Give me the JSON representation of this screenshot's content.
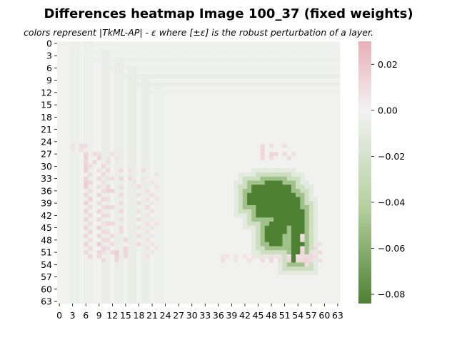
{
  "chart_data": {
    "type": "heatmap",
    "title": "Differences heatmap Image 100_37 (fixed weights)",
    "subtitle": "colors represent |TkML-AP| - ε where [±ε] is the robust perturbation of a layer.",
    "xlabel": "",
    "ylabel": "",
    "rows": 64,
    "cols": 64,
    "x_tick_labels": [
      "0",
      "3",
      "6",
      "9",
      "12",
      "15",
      "18",
      "21",
      "24",
      "27",
      "30",
      "33",
      "36",
      "39",
      "42",
      "45",
      "48",
      "51",
      "54",
      "57",
      "60",
      "63"
    ],
    "y_tick_labels": [
      "0",
      "3",
      "6",
      "9",
      "12",
      "15",
      "18",
      "21",
      "24",
      "27",
      "30",
      "33",
      "36",
      "39",
      "42",
      "45",
      "48",
      "51",
      "54",
      "57",
      "60",
      "63"
    ],
    "colorbar": {
      "vmin": -0.084,
      "vmax": 0.03,
      "center": 0.0,
      "ticks": [
        0.02,
        0.0,
        -0.02,
        -0.04,
        -0.06,
        -0.08
      ],
      "tick_labels": [
        "0.02",
        "0.00",
        "−0.02",
        "−0.04",
        "−0.06",
        "−0.08"
      ],
      "colors": {
        "negative": "#4e8132",
        "center": "#f2f2f2",
        "positive": "#e8b0b8"
      }
    },
    "background_value": -0.001,
    "value_bands": [
      {
        "region": "rows 0-63, cols 3-4",
        "value": -0.004
      },
      {
        "region": "rows 0-63, cols 6-7",
        "value": -0.004
      },
      {
        "region": "rows 2-63, cols 10-11",
        "value": -0.005
      },
      {
        "region": "rows 4-63, cols 13-14",
        "value": -0.005
      },
      {
        "region": "rows 6-63, cols 16-17",
        "value": -0.006
      },
      {
        "region": "rows 8-63, cols 19-20",
        "value": -0.005
      },
      {
        "region": "rows 10-63, cols 22-23",
        "value": -0.004
      },
      {
        "region": "row 2, cols 3-63",
        "value": -0.003
      },
      {
        "region": "row 4, cols 6-63",
        "value": -0.004
      },
      {
        "region": "row 6, cols 10-63",
        "value": -0.004
      },
      {
        "region": "row 8, cols 13-63",
        "value": -0.005
      },
      {
        "region": "row 10, cols 16-63",
        "value": -0.006
      },
      {
        "region": "row 12, cols 19-63",
        "value": -0.004
      }
    ],
    "digit_region_value": -0.084,
    "halo_values": [
      -0.05,
      -0.025,
      -0.01
    ],
    "digit_polylines": [
      [
        [
          38,
          44
        ],
        [
          38,
          52
        ],
        [
          40,
          53
        ],
        [
          44,
          54
        ],
        [
          48,
          54
        ],
        [
          52,
          54
        ]
      ],
      [
        [
          36,
          45
        ],
        [
          36,
          48
        ],
        [
          35,
          48
        ],
        [
          36,
          51
        ]
      ],
      [
        [
          37,
          50
        ],
        [
          42,
          51
        ],
        [
          44,
          50
        ],
        [
          46,
          48
        ],
        [
          48,
          49
        ]
      ]
    ],
    "digit_columns": [
      {
        "col": 46,
        "row_start": 36,
        "row_end": 41
      },
      {
        "col": 47,
        "row_start": 36,
        "row_end": 41
      },
      {
        "col": 48,
        "row_start": 37,
        "row_end": 41
      },
      {
        "col": 49,
        "row_start": 38,
        "row_end": 41
      }
    ],
    "positive_cells": [
      [
        25,
        3,
        0.006
      ],
      [
        26,
        3,
        0.005
      ],
      [
        25,
        5,
        0.01
      ],
      [
        26,
        5,
        0.008
      ],
      [
        25,
        6,
        0.009
      ],
      [
        27,
        6,
        0.012
      ],
      [
        28,
        6,
        0.015
      ],
      [
        27,
        8,
        0.01
      ],
      [
        27,
        9,
        0.008
      ],
      [
        28,
        9,
        0.012
      ],
      [
        28,
        11,
        0.006
      ],
      [
        27,
        12,
        0.008
      ],
      [
        28,
        13,
        0.006
      ],
      [
        27,
        14,
        0.005
      ],
      [
        29,
        6,
        0.012
      ],
      [
        30,
        6,
        0.014
      ],
      [
        31,
        6,
        0.015
      ],
      [
        33,
        6,
        0.013
      ],
      [
        34,
        6,
        0.015
      ],
      [
        35,
        6,
        0.016
      ],
      [
        37,
        6,
        0.012
      ],
      [
        39,
        6,
        0.014
      ],
      [
        41,
        6,
        0.013
      ],
      [
        43,
        6,
        0.012
      ],
      [
        45,
        6,
        0.013
      ],
      [
        47,
        6,
        0.012
      ],
      [
        49,
        6,
        0.014
      ],
      [
        51,
        6,
        0.012
      ],
      [
        30,
        7,
        0.01
      ],
      [
        32,
        7,
        0.009
      ],
      [
        34,
        7,
        0.012
      ],
      [
        36,
        7,
        0.009
      ],
      [
        38,
        7,
        0.014
      ],
      [
        40,
        7,
        0.01
      ],
      [
        42,
        7,
        0.012
      ],
      [
        44,
        7,
        0.011
      ],
      [
        46,
        7,
        0.012
      ],
      [
        48,
        7,
        0.01
      ],
      [
        50,
        7,
        0.011
      ],
      [
        52,
        7,
        0.012
      ],
      [
        29,
        8,
        0.012
      ],
      [
        31,
        9,
        0.008
      ],
      [
        33,
        9,
        0.011
      ],
      [
        35,
        9,
        0.009
      ],
      [
        37,
        9,
        0.012
      ],
      [
        39,
        9,
        0.01
      ],
      [
        41,
        9,
        0.012
      ],
      [
        43,
        9,
        0.011
      ],
      [
        45,
        9,
        0.014
      ],
      [
        47,
        9,
        0.012
      ],
      [
        49,
        9,
        0.016
      ],
      [
        51,
        9,
        0.013
      ],
      [
        52,
        9,
        0.011
      ],
      [
        30,
        10,
        0.012
      ],
      [
        32,
        10,
        0.01
      ],
      [
        34,
        10,
        0.008
      ],
      [
        36,
        10,
        0.01
      ],
      [
        38,
        10,
        0.012
      ],
      [
        40,
        10,
        0.009
      ],
      [
        42,
        10,
        0.011
      ],
      [
        44,
        10,
        0.008
      ],
      [
        46,
        10,
        0.011
      ],
      [
        48,
        10,
        0.01
      ],
      [
        50,
        10,
        0.012
      ],
      [
        51,
        10,
        0.009
      ],
      [
        53,
        10,
        0.011
      ],
      [
        29,
        11,
        0.009
      ],
      [
        31,
        11,
        0.011
      ],
      [
        33,
        11,
        0.008
      ],
      [
        35,
        11,
        0.011
      ],
      [
        36,
        11,
        0.013
      ],
      [
        38,
        11,
        0.009
      ],
      [
        40,
        11,
        0.012
      ],
      [
        42,
        11,
        0.01
      ],
      [
        44,
        11,
        0.012
      ],
      [
        46,
        11,
        0.009
      ],
      [
        48,
        11,
        0.011
      ],
      [
        50,
        11,
        0.009
      ],
      [
        51,
        12,
        0.012
      ],
      [
        33,
        12,
        0.009
      ],
      [
        36,
        12,
        0.013
      ],
      [
        40,
        12,
        0.01
      ],
      [
        44,
        12,
        0.012
      ],
      [
        47,
        12,
        0.011
      ],
      [
        49,
        12,
        0.01
      ],
      [
        51,
        13,
        0.016
      ],
      [
        52,
        13,
        0.014
      ],
      [
        53,
        13,
        0.012
      ],
      [
        31,
        14,
        0.01
      ],
      [
        33,
        14,
        0.012
      ],
      [
        35,
        14,
        0.009
      ],
      [
        37,
        14,
        0.011
      ],
      [
        39,
        14,
        0.01
      ],
      [
        41,
        14,
        0.012
      ],
      [
        43,
        14,
        0.009
      ],
      [
        45,
        14,
        0.011
      ],
      [
        46,
        14,
        0.01
      ],
      [
        48,
        15,
        0.012
      ],
      [
        50,
        15,
        0.011
      ],
      [
        51,
        15,
        0.013
      ],
      [
        52,
        15,
        0.012
      ],
      [
        31,
        16,
        0.008
      ],
      [
        33,
        16,
        0.01
      ],
      [
        34,
        17,
        0.007
      ],
      [
        35,
        18,
        0.009
      ],
      [
        37,
        18,
        0.008
      ],
      [
        39,
        18,
        0.01
      ],
      [
        41,
        18,
        0.008
      ],
      [
        43,
        18,
        0.01
      ],
      [
        45,
        18,
        0.008
      ],
      [
        47,
        18,
        0.01
      ],
      [
        49,
        18,
        0.012
      ],
      [
        31,
        19,
        0.009
      ],
      [
        33,
        19,
        0.007
      ],
      [
        36,
        20,
        0.008
      ],
      [
        38,
        20,
        0.007
      ],
      [
        40,
        20,
        0.009
      ],
      [
        42,
        20,
        0.007
      ],
      [
        44,
        20,
        0.008
      ],
      [
        46,
        20,
        0.007
      ],
      [
        48,
        20,
        0.008
      ],
      [
        50,
        20,
        0.007
      ],
      [
        52,
        20,
        0.008
      ],
      [
        34,
        21,
        0.006
      ],
      [
        37,
        21,
        0.008
      ],
      [
        39,
        21,
        0.006
      ],
      [
        41,
        21,
        0.008
      ],
      [
        43,
        21,
        0.006
      ],
      [
        45,
        21,
        0.007
      ],
      [
        47,
        21,
        0.006
      ],
      [
        49,
        21,
        0.007
      ],
      [
        51,
        21,
        0.006
      ],
      [
        32,
        22,
        0.006
      ],
      [
        35,
        22,
        0.007
      ],
      [
        38,
        22,
        0.006
      ],
      [
        44,
        22,
        0.006
      ],
      [
        50,
        22,
        0.006
      ],
      [
        25,
        46,
        0.01
      ],
      [
        26,
        46,
        0.012
      ],
      [
        27,
        46,
        0.013
      ],
      [
        28,
        46,
        0.011
      ],
      [
        25,
        48,
        0.009
      ],
      [
        27,
        48,
        0.012
      ],
      [
        28,
        48,
        0.01
      ],
      [
        27,
        49,
        0.013
      ],
      [
        25,
        51,
        0.008
      ],
      [
        27,
        51,
        0.011
      ],
      [
        28,
        52,
        0.01
      ],
      [
        27,
        53,
        0.008
      ],
      [
        47,
        55,
        0.008
      ],
      [
        48,
        55,
        0.011
      ],
      [
        50,
        55,
        0.009
      ],
      [
        51,
        55,
        0.012
      ],
      [
        52,
        55,
        0.01
      ],
      [
        53,
        55,
        0.012
      ],
      [
        52,
        56,
        0.011
      ],
      [
        53,
        56,
        0.013
      ],
      [
        54,
        56,
        0.009
      ],
      [
        51,
        57,
        0.01
      ],
      [
        52,
        57,
        0.012
      ],
      [
        53,
        57,
        0.01
      ],
      [
        50,
        58,
        0.01
      ],
      [
        52,
        58,
        0.009
      ],
      [
        49,
        59,
        0.008
      ],
      [
        51,
        59,
        0.01
      ],
      [
        53,
        59,
        0.008
      ],
      [
        52,
        37,
        0.006
      ],
      [
        53,
        37,
        0.008
      ],
      [
        53,
        40,
        0.006
      ],
      [
        53,
        43,
        0.008
      ],
      [
        53,
        46,
        0.009
      ],
      [
        53,
        48,
        0.012
      ],
      [
        53,
        50,
        0.01
      ],
      [
        53,
        52,
        0.012
      ],
      [
        53,
        54,
        0.011
      ],
      [
        52,
        38,
        0.006
      ],
      [
        52,
        40,
        0.007
      ],
      [
        52,
        42,
        0.006
      ],
      [
        52,
        44,
        0.007
      ],
      [
        52,
        46,
        0.008
      ],
      [
        52,
        48,
        0.009
      ],
      [
        52,
        50,
        0.008
      ],
      [
        52,
        52,
        0.009
      ],
      [
        52,
        54,
        0.008
      ]
    ]
  }
}
